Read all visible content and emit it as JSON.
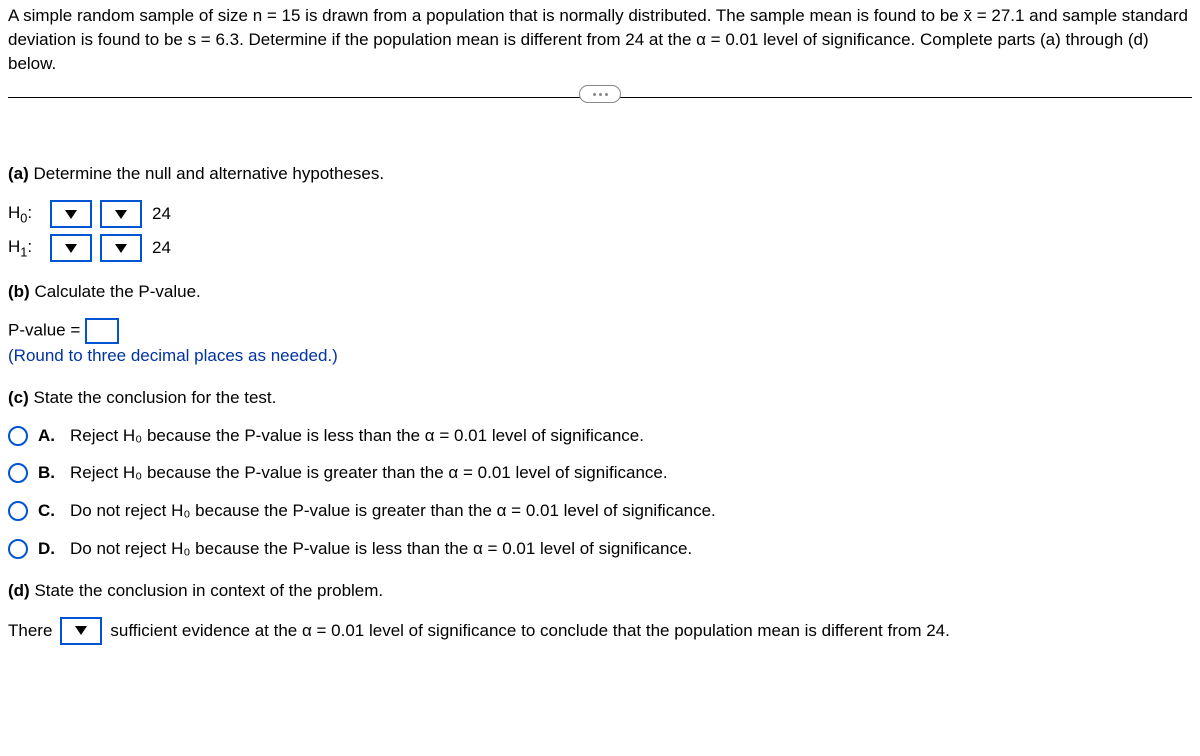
{
  "intro": "A simple random sample of size n = 15 is drawn from a population that is normally distributed. The sample mean is found to be x̄ = 27.1 and sample standard deviation is found to be s = 6.3. Determine if the population mean is different from 24 at the α = 0.01 level of significance. Complete parts (a) through (d) below.",
  "a": {
    "prompt_prefix": "(a)",
    "prompt": " Determine the null and alternative hypotheses.",
    "h0_label": "H",
    "h0_sub": "0",
    "h0_colon": ":",
    "h0_value": "24",
    "h1_label": "H",
    "h1_sub": "1",
    "h1_colon": ":",
    "h1_value": "24"
  },
  "b": {
    "prompt_prefix": "(b)",
    "prompt": " Calculate the P-value.",
    "pvalue_label": "P-value = ",
    "round_instr": "(Round to three decimal places as needed.)"
  },
  "c": {
    "prompt_prefix": "(c)",
    "prompt": " State the conclusion for the test.",
    "options": [
      {
        "letter": "A.",
        "text": "Reject H₀ because the P-value is less than the α = 0.01 level of significance."
      },
      {
        "letter": "B.",
        "text": "Reject H₀ because the P-value is greater than the α = 0.01 level of significance."
      },
      {
        "letter": "C.",
        "text": "Do not reject H₀ because the P-value is greater than the α = 0.01 level of significance."
      },
      {
        "letter": "D.",
        "text": "Do not reject H₀ because the P-value is less than the α = 0.01 level of significance."
      }
    ]
  },
  "d": {
    "prompt_prefix": "(d)",
    "prompt": " State the conclusion in context of the problem.",
    "there": "There",
    "conclusion_tail": "sufficient evidence at the α = 0.01 level of significance to conclude that the population mean is different from 24."
  }
}
